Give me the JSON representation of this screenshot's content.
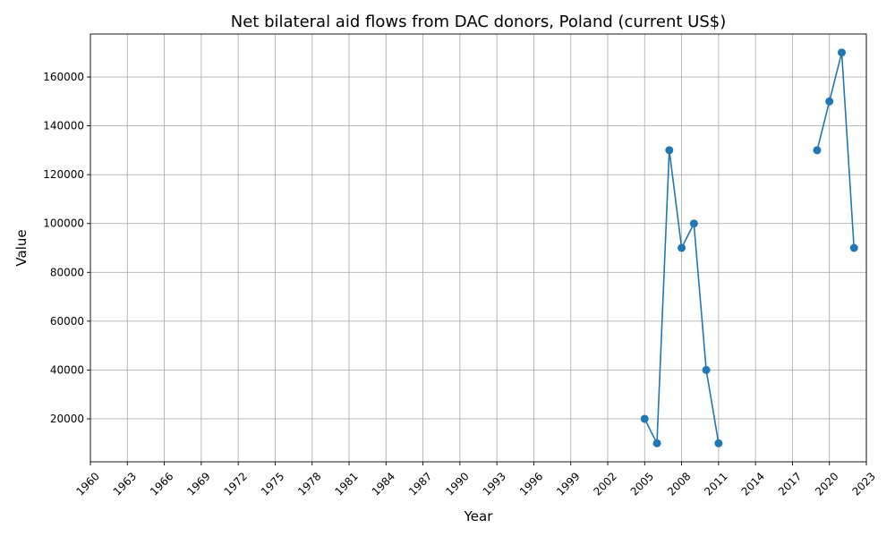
{
  "chart_data": {
    "type": "line",
    "title": "Net bilateral aid flows from DAC donors, Poland (current US$)",
    "xlabel": "Year",
    "ylabel": "Value",
    "xlim": [
      1960,
      2023
    ],
    "ylim": [
      2400,
      177600
    ],
    "grid": true,
    "xticks": [
      "1960",
      "1963",
      "1966",
      "1969",
      "1972",
      "1975",
      "1978",
      "1981",
      "1984",
      "1987",
      "1990",
      "1993",
      "1996",
      "1999",
      "2002",
      "2005",
      "2008",
      "2011",
      "2014",
      "2017",
      "2020",
      "2023"
    ],
    "xtick_values": [
      1960,
      1963,
      1966,
      1969,
      1972,
      1975,
      1978,
      1981,
      1984,
      1987,
      1990,
      1993,
      1996,
      1999,
      2002,
      2005,
      2008,
      2011,
      2014,
      2017,
      2020,
      2023
    ],
    "yticks": [
      "20000",
      "40000",
      "60000",
      "80000",
      "100000",
      "120000",
      "140000",
      "160000"
    ],
    "ytick_values": [
      20000,
      40000,
      60000,
      80000,
      100000,
      120000,
      140000,
      160000
    ],
    "series": [
      {
        "color": "#1f77b4",
        "segments": [
          {
            "x": [
              2005,
              2006,
              2007,
              2008,
              2009,
              2010,
              2011
            ],
            "y": [
              20000,
              10000,
              130000,
              90000,
              100000,
              40000,
              10000
            ]
          },
          {
            "x": [
              2019,
              2020,
              2021,
              2022
            ],
            "y": [
              130000,
              150000,
              170000,
              90000
            ]
          }
        ]
      }
    ]
  }
}
